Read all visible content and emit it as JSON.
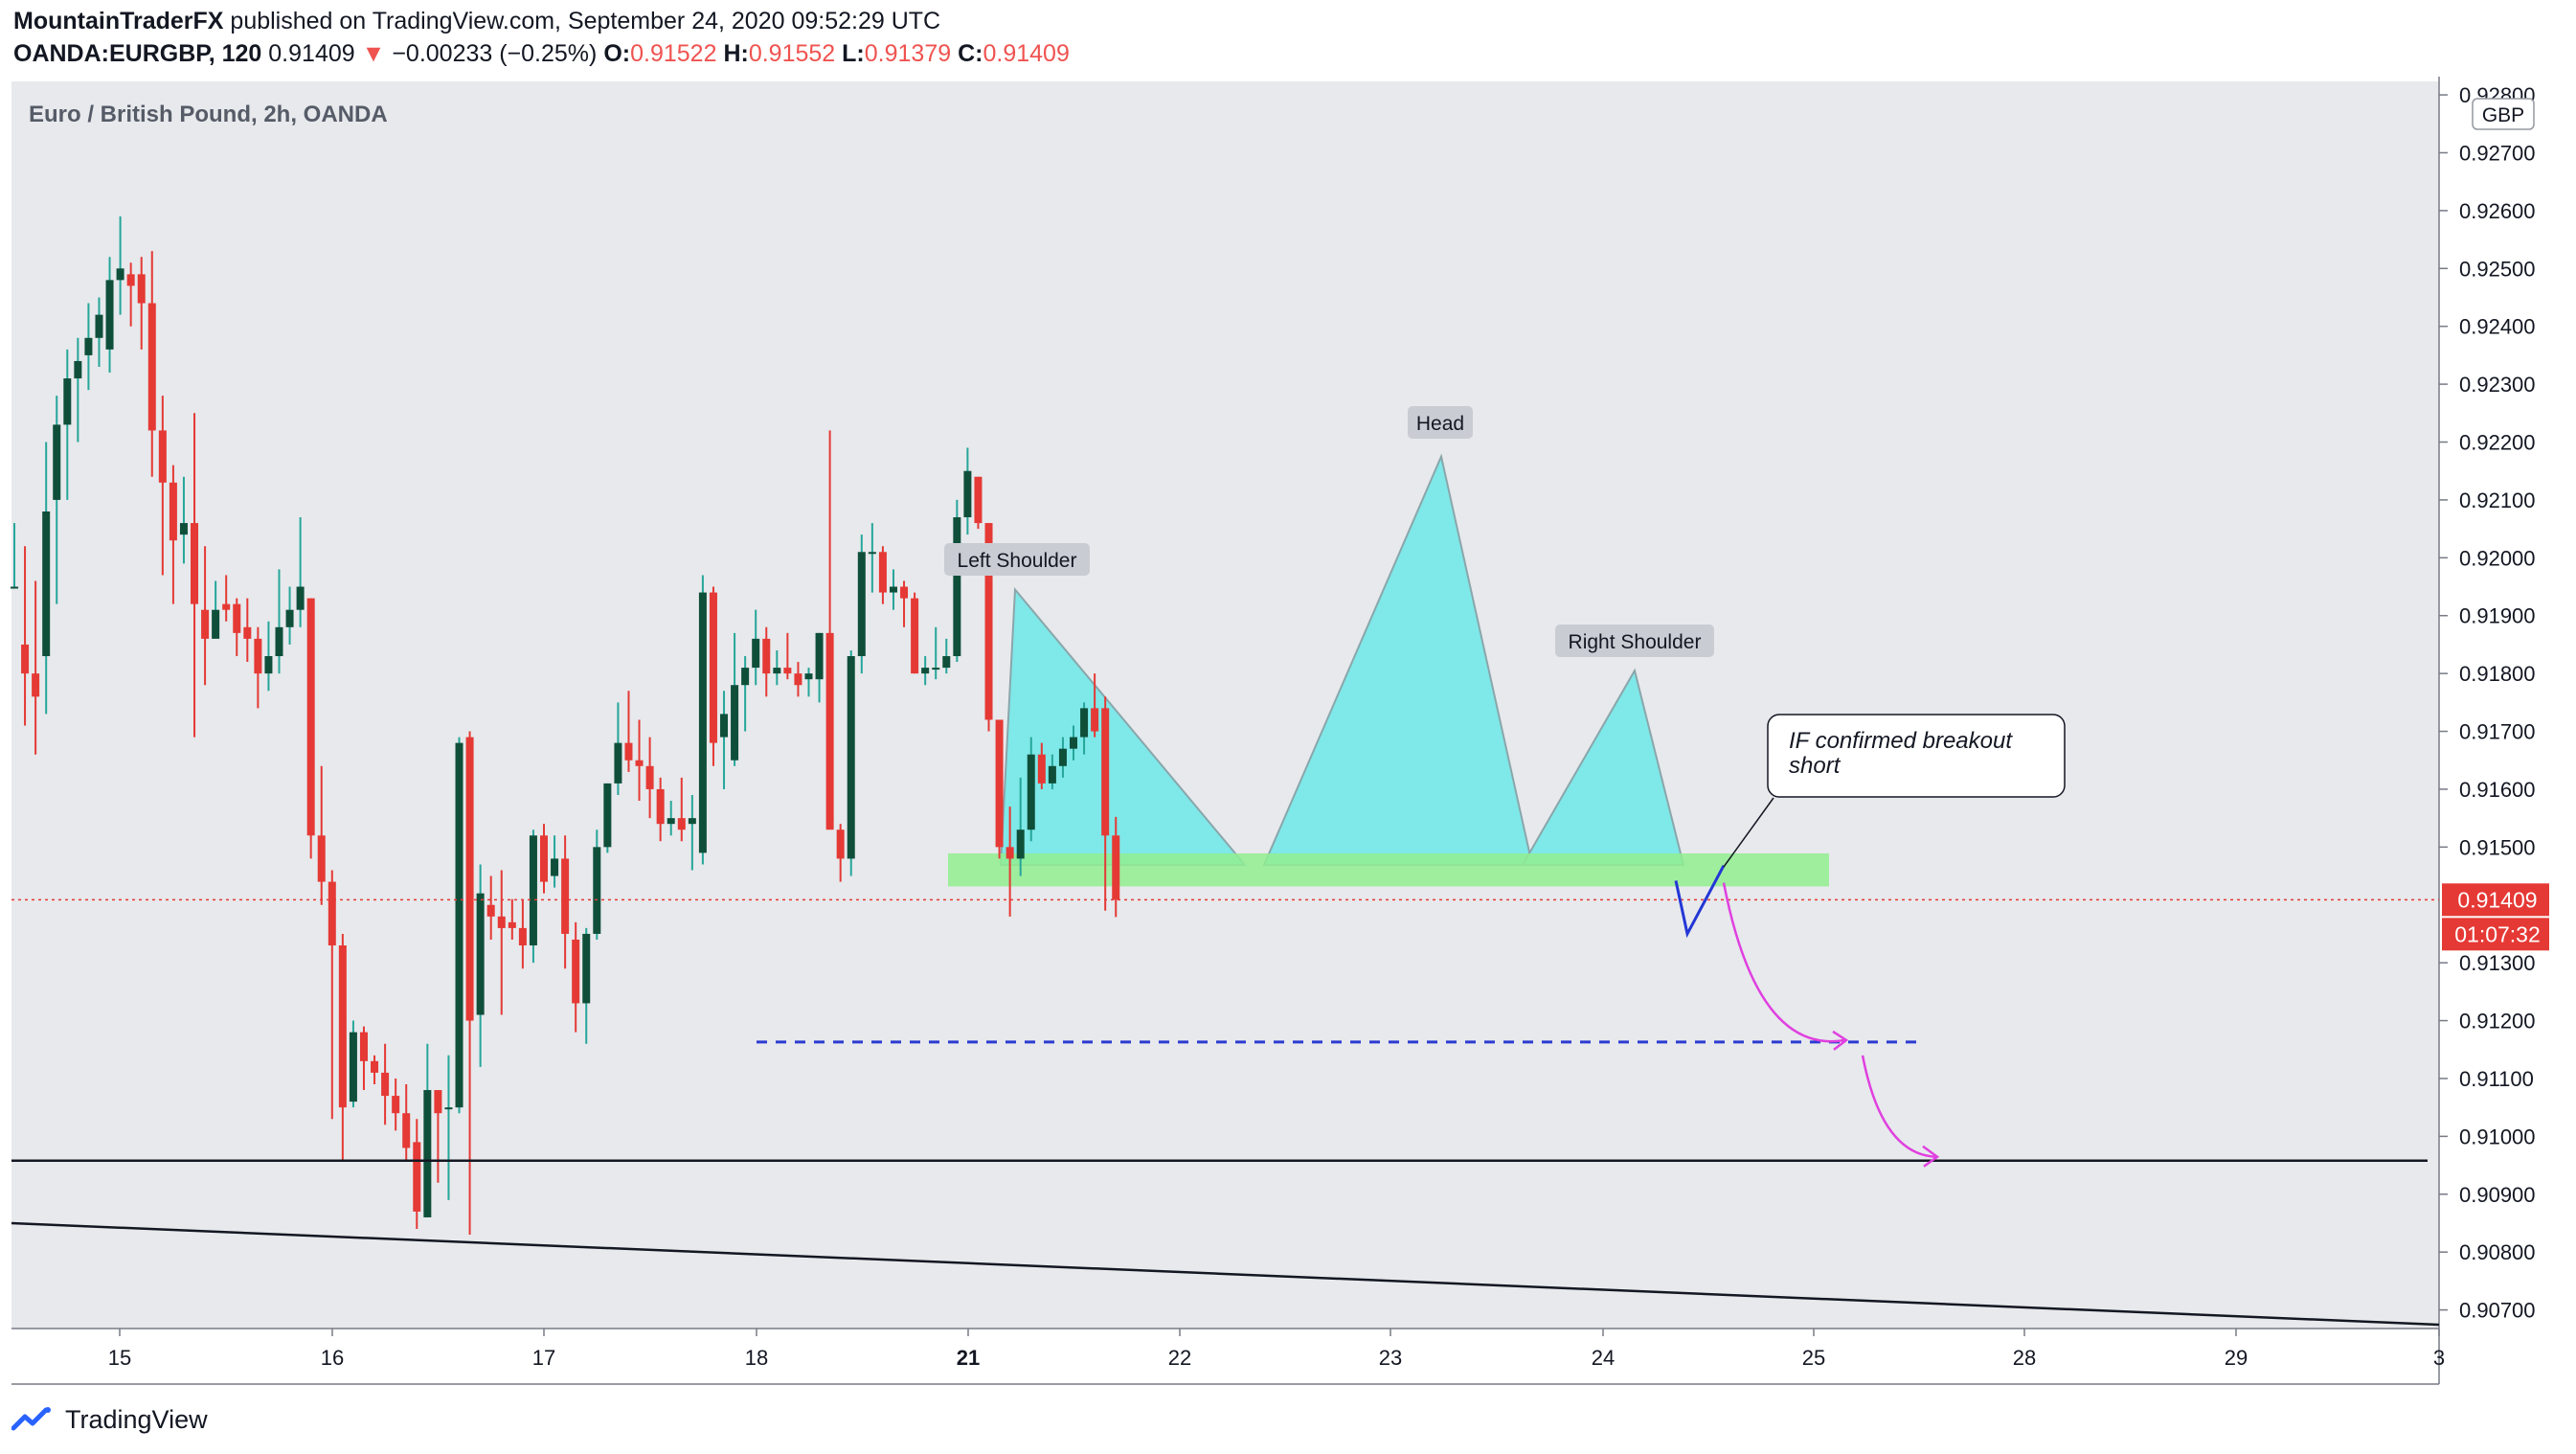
{
  "header": {
    "author": "MountainTraderFX",
    "published_text": " published on TradingView.com, September 24, 2020 09:52:29 UTC",
    "symbol": "OANDA:EURGBP, 120",
    "last": "0.91409",
    "change_arrow": "▼",
    "change": "−0.00233 (−0.25%)",
    "o_label": "O:",
    "o_value": "0.91522",
    "h_label": "H:",
    "h_value": "0.91552",
    "l_label": "L:",
    "l_value": "0.91379",
    "c_label": "C:",
    "c_value": "0.91409"
  },
  "footer": {
    "brand": "TradingView",
    "logo_icon": "tradingview-logo-icon"
  },
  "chart_data": {
    "type": "candlestick",
    "title": "Euro / British Pound, 2h, OANDA",
    "currency": "GBP",
    "y_range": [
      0.9064,
      0.9282
    ],
    "x_ticks": [
      {
        "label": "15",
        "bold": false
      },
      {
        "label": "16",
        "bold": false
      },
      {
        "label": "17",
        "bold": false
      },
      {
        "label": "18",
        "bold": false
      },
      {
        "label": "21",
        "bold": true
      },
      {
        "label": "22",
        "bold": false
      },
      {
        "label": "23",
        "bold": false
      },
      {
        "label": "24",
        "bold": false
      },
      {
        "label": "25",
        "bold": false
      },
      {
        "label": "28",
        "bold": false
      },
      {
        "label": "29",
        "bold": false
      },
      {
        "label": "3",
        "bold": false
      }
    ],
    "y_ticks": [
      "0.92800",
      "0.92700",
      "0.92600",
      "0.92500",
      "0.92400",
      "0.92300",
      "0.92200",
      "0.92100",
      "0.92000",
      "0.91900",
      "0.91800",
      "0.91700",
      "0.91600",
      "0.91500",
      "0.91300",
      "0.91200",
      "0.91100",
      "0.91000",
      "0.90900",
      "0.90800",
      "0.90700"
    ],
    "last_price_label": "0.91409",
    "countdown_label": "01:07:32",
    "colors": {
      "up": "#26a69a",
      "up_body": "#0f4f3a",
      "down": "#e53935",
      "bg": "#e7e9ec",
      "neckline": "#90ee90",
      "pattern": "#7fe8e8"
    },
    "annotations": [
      {
        "text": "Left Shoulder"
      },
      {
        "text": "Head"
      },
      {
        "text": "Right Shoulder"
      },
      {
        "text": "IF confirmed breakout short"
      }
    ],
    "levels": {
      "neckline_top": 0.91489,
      "neckline_bottom": 0.91432,
      "target_1": 0.91163,
      "support": 0.90958
    },
    "projection_path": [
      0.91442,
      0.9135,
      0.91468
    ],
    "candles": [
      {
        "o": 0.9195,
        "h": 0.9206,
        "l": 0.9195,
        "c": 0.9195
      },
      {
        "o": 0.9185,
        "h": 0.9202,
        "l": 0.9171,
        "c": 0.918
      },
      {
        "o": 0.918,
        "h": 0.9196,
        "l": 0.9166,
        "c": 0.9176
      },
      {
        "o": 0.9183,
        "h": 0.922,
        "l": 0.9173,
        "c": 0.9208
      },
      {
        "o": 0.921,
        "h": 0.9228,
        "l": 0.9192,
        "c": 0.9223
      },
      {
        "o": 0.9223,
        "h": 0.9236,
        "l": 0.921,
        "c": 0.9231
      },
      {
        "o": 0.9231,
        "h": 0.9238,
        "l": 0.922,
        "c": 0.9234
      },
      {
        "o": 0.9235,
        "h": 0.9244,
        "l": 0.9229,
        "c": 0.9238
      },
      {
        "o": 0.9238,
        "h": 0.9245,
        "l": 0.9233,
        "c": 0.9242
      },
      {
        "o": 0.9236,
        "h": 0.9252,
        "l": 0.9232,
        "c": 0.9248
      },
      {
        "o": 0.9248,
        "h": 0.9259,
        "l": 0.9242,
        "c": 0.925
      },
      {
        "o": 0.9249,
        "h": 0.9251,
        "l": 0.924,
        "c": 0.9247
      },
      {
        "o": 0.9249,
        "h": 0.9252,
        "l": 0.9236,
        "c": 0.9244
      },
      {
        "o": 0.9244,
        "h": 0.9253,
        "l": 0.9214,
        "c": 0.9222
      },
      {
        "o": 0.9222,
        "h": 0.9228,
        "l": 0.9197,
        "c": 0.9213
      },
      {
        "o": 0.9213,
        "h": 0.9216,
        "l": 0.9192,
        "c": 0.9203
      },
      {
        "o": 0.9204,
        "h": 0.9214,
        "l": 0.9199,
        "c": 0.9206
      },
      {
        "o": 0.9206,
        "h": 0.9225,
        "l": 0.9169,
        "c": 0.9192
      },
      {
        "o": 0.9191,
        "h": 0.9202,
        "l": 0.9178,
        "c": 0.9186
      },
      {
        "o": 0.9186,
        "h": 0.9196,
        "l": 0.9188,
        "c": 0.9191
      },
      {
        "o": 0.9192,
        "h": 0.9197,
        "l": 0.9189,
        "c": 0.9191
      },
      {
        "o": 0.9192,
        "h": 0.9193,
        "l": 0.9183,
        "c": 0.9187
      },
      {
        "o": 0.9188,
        "h": 0.9193,
        "l": 0.9182,
        "c": 0.9186
      },
      {
        "o": 0.9186,
        "h": 0.9188,
        "l": 0.9174,
        "c": 0.918
      },
      {
        "o": 0.918,
        "h": 0.9189,
        "l": 0.9177,
        "c": 0.9183
      },
      {
        "o": 0.9183,
        "h": 0.9198,
        "l": 0.918,
        "c": 0.9188
      },
      {
        "o": 0.9188,
        "h": 0.9195,
        "l": 0.9185,
        "c": 0.9191
      },
      {
        "o": 0.9191,
        "h": 0.9207,
        "l": 0.9188,
        "c": 0.9195
      },
      {
        "o": 0.9193,
        "h": 0.9193,
        "l": 0.9148,
        "c": 0.9152
      },
      {
        "o": 0.9152,
        "h": 0.9164,
        "l": 0.914,
        "c": 0.9144
      },
      {
        "o": 0.9144,
        "h": 0.9146,
        "l": 0.9103,
        "c": 0.9133
      },
      {
        "o": 0.9133,
        "h": 0.9135,
        "l": 0.9096,
        "c": 0.9105
      },
      {
        "o": 0.9106,
        "h": 0.912,
        "l": 0.9105,
        "c": 0.9118
      },
      {
        "o": 0.9118,
        "h": 0.9119,
        "l": 0.9108,
        "c": 0.9113
      },
      {
        "o": 0.9113,
        "h": 0.9114,
        "l": 0.9109,
        "c": 0.9111
      },
      {
        "o": 0.9111,
        "h": 0.9116,
        "l": 0.9102,
        "c": 0.9107
      },
      {
        "o": 0.9107,
        "h": 0.911,
        "l": 0.9101,
        "c": 0.9104
      },
      {
        "o": 0.9104,
        "h": 0.9109,
        "l": 0.9096,
        "c": 0.9098
      },
      {
        "o": 0.9099,
        "h": 0.9103,
        "l": 0.9084,
        "c": 0.9087
      },
      {
        "o": 0.9086,
        "h": 0.9116,
        "l": 0.9086,
        "c": 0.9108
      },
      {
        "o": 0.9108,
        "h": 0.9107,
        "l": 0.9092,
        "c": 0.9104
      },
      {
        "o": 0.9105,
        "h": 0.9114,
        "l": 0.9089,
        "c": 0.9105
      },
      {
        "o": 0.9105,
        "h": 0.9169,
        "l": 0.9104,
        "c": 0.9168
      },
      {
        "o": 0.9169,
        "h": 0.917,
        "l": 0.9083,
        "c": 0.912
      },
      {
        "o": 0.9121,
        "h": 0.9147,
        "l": 0.9112,
        "c": 0.9142
      },
      {
        "o": 0.914,
        "h": 0.9145,
        "l": 0.9134,
        "c": 0.9138
      },
      {
        "o": 0.9138,
        "h": 0.9146,
        "l": 0.9121,
        "c": 0.9136
      },
      {
        "o": 0.9137,
        "h": 0.9141,
        "l": 0.9134,
        "c": 0.9136
      },
      {
        "o": 0.9136,
        "h": 0.9141,
        "l": 0.9129,
        "c": 0.9133
      },
      {
        "o": 0.9133,
        "h": 0.9153,
        "l": 0.913,
        "c": 0.9152
      },
      {
        "o": 0.9152,
        "h": 0.9154,
        "l": 0.9142,
        "c": 0.9144
      },
      {
        "o": 0.9145,
        "h": 0.9152,
        "l": 0.9143,
        "c": 0.9148
      },
      {
        "o": 0.9148,
        "h": 0.9152,
        "l": 0.9129,
        "c": 0.9135
      },
      {
        "o": 0.9134,
        "h": 0.9137,
        "l": 0.9118,
        "c": 0.9123
      },
      {
        "o": 0.9123,
        "h": 0.9136,
        "l": 0.9116,
        "c": 0.9135
      },
      {
        "o": 0.9135,
        "h": 0.9153,
        "l": 0.9134,
        "c": 0.915
      },
      {
        "o": 0.915,
        "h": 0.9161,
        "l": 0.9149,
        "c": 0.9161
      },
      {
        "o": 0.9161,
        "h": 0.9175,
        "l": 0.9159,
        "c": 0.9168
      },
      {
        "o": 0.9168,
        "h": 0.9177,
        "l": 0.9163,
        "c": 0.9165
      },
      {
        "o": 0.9165,
        "h": 0.9172,
        "l": 0.9158,
        "c": 0.9164
      },
      {
        "o": 0.9164,
        "h": 0.9169,
        "l": 0.9155,
        "c": 0.916
      },
      {
        "o": 0.916,
        "h": 0.9162,
        "l": 0.9151,
        "c": 0.9154
      },
      {
        "o": 0.9154,
        "h": 0.9158,
        "l": 0.9152,
        "c": 0.9155
      },
      {
        "o": 0.9155,
        "h": 0.9162,
        "l": 0.9151,
        "c": 0.9153
      },
      {
        "o": 0.9154,
        "h": 0.9159,
        "l": 0.9146,
        "c": 0.9155
      },
      {
        "o": 0.9149,
        "h": 0.9197,
        "l": 0.9147,
        "c": 0.9194
      },
      {
        "o": 0.9194,
        "h": 0.9195,
        "l": 0.9164,
        "c": 0.9168
      },
      {
        "o": 0.9169,
        "h": 0.9177,
        "l": 0.916,
        "c": 0.9173
      },
      {
        "o": 0.9165,
        "h": 0.9187,
        "l": 0.9164,
        "c": 0.9178
      },
      {
        "o": 0.9178,
        "h": 0.9183,
        "l": 0.917,
        "c": 0.9181
      },
      {
        "o": 0.9181,
        "h": 0.9191,
        "l": 0.9178,
        "c": 0.9186
      },
      {
        "o": 0.9186,
        "h": 0.9188,
        "l": 0.9176,
        "c": 0.918
      },
      {
        "o": 0.918,
        "h": 0.9184,
        "l": 0.9178,
        "c": 0.9181
      },
      {
        "o": 0.9181,
        "h": 0.9187,
        "l": 0.9179,
        "c": 0.918
      },
      {
        "o": 0.918,
        "h": 0.9182,
        "l": 0.9176,
        "c": 0.9178
      },
      {
        "o": 0.9179,
        "h": 0.9181,
        "l": 0.9176,
        "c": 0.918
      },
      {
        "o": 0.9179,
        "h": 0.9187,
        "l": 0.9175,
        "c": 0.9187
      },
      {
        "o": 0.9187,
        "h": 0.9222,
        "l": 0.9155,
        "c": 0.9153
      },
      {
        "o": 0.9153,
        "h": 0.9154,
        "l": 0.9144,
        "c": 0.9148
      },
      {
        "o": 0.9148,
        "h": 0.9184,
        "l": 0.9145,
        "c": 0.9183
      },
      {
        "o": 0.9183,
        "h": 0.9204,
        "l": 0.918,
        "c": 0.9201
      },
      {
        "o": 0.9201,
        "h": 0.9206,
        "l": 0.9194,
        "c": 0.9201
      },
      {
        "o": 0.9201,
        "h": 0.9202,
        "l": 0.9192,
        "c": 0.9194
      },
      {
        "o": 0.9194,
        "h": 0.9198,
        "l": 0.9191,
        "c": 0.9195
      },
      {
        "o": 0.9195,
        "h": 0.9196,
        "l": 0.9188,
        "c": 0.9193
      },
      {
        "o": 0.9193,
        "h": 0.9194,
        "l": 0.918,
        "c": 0.918
      },
      {
        "o": 0.918,
        "h": 0.9183,
        "l": 0.9178,
        "c": 0.9181
      },
      {
        "o": 0.9181,
        "h": 0.9188,
        "l": 0.9179,
        "c": 0.9181
      },
      {
        "o": 0.9181,
        "h": 0.9186,
        "l": 0.918,
        "c": 0.9183
      },
      {
        "o": 0.9183,
        "h": 0.921,
        "l": 0.9182,
        "c": 0.9207
      },
      {
        "o": 0.9207,
        "h": 0.9219,
        "l": 0.9204,
        "c": 0.9215
      },
      {
        "o": 0.9214,
        "h": 0.9214,
        "l": 0.9205,
        "c": 0.9206
      },
      {
        "o": 0.9206,
        "h": 0.9206,
        "l": 0.917,
        "c": 0.9172
      },
      {
        "o": 0.9172,
        "h": 0.9172,
        "l": 0.9148,
        "c": 0.915
      },
      {
        "o": 0.915,
        "h": 0.9157,
        "l": 0.9138,
        "c": 0.9148
      },
      {
        "o": 0.9148,
        "h": 0.9162,
        "l": 0.9145,
        "c": 0.9153
      },
      {
        "o": 0.9153,
        "h": 0.9169,
        "l": 0.9151,
        "c": 0.9166
      },
      {
        "o": 0.9166,
        "h": 0.9168,
        "l": 0.916,
        "c": 0.9161
      },
      {
        "o": 0.9161,
        "h": 0.9166,
        "l": 0.916,
        "c": 0.9164
      },
      {
        "o": 0.9164,
        "h": 0.9169,
        "l": 0.9162,
        "c": 0.9167
      },
      {
        "o": 0.9167,
        "h": 0.9171,
        "l": 0.9165,
        "c": 0.9169
      },
      {
        "o": 0.9169,
        "h": 0.9175,
        "l": 0.9166,
        "c": 0.9174
      },
      {
        "o": 0.9174,
        "h": 0.918,
        "l": 0.9169,
        "c": 0.917
      },
      {
        "o": 0.9174,
        "h": 0.9176,
        "l": 0.9139,
        "c": 0.9152
      },
      {
        "o": 0.9152,
        "h": 0.91552,
        "l": 0.91379,
        "c": 0.91409
      }
    ]
  }
}
